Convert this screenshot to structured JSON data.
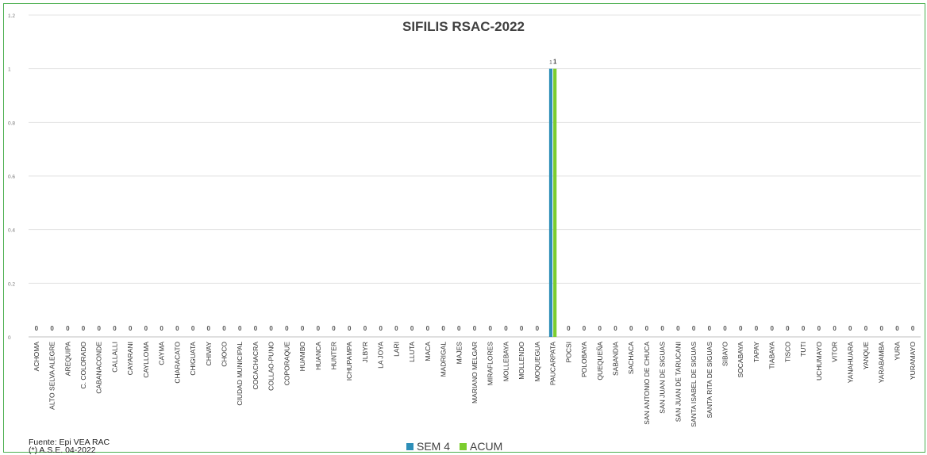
{
  "chart_data": {
    "type": "bar",
    "title": "SIFILIS RSAC-2022",
    "xlabel": "",
    "ylabel": "",
    "ylim": [
      0,
      1.2
    ],
    "yticks": [
      "0",
      "0.2",
      "0.4",
      "0.6",
      "0.8",
      "1",
      "1.2"
    ],
    "grid": true,
    "legend_position": "bottom",
    "categories": [
      "ACHOMA",
      "ALTO SELVA ALEGRE",
      "AREQUIPA",
      "C. COLORADO",
      "CABANACONDE",
      "CALLALLI",
      "CAYARANI",
      "CAYLLOMA",
      "CAYMA",
      "CHARACATO",
      "CHIGUATA",
      "CHIVAY",
      "CHOCO",
      "CIUDAD MUNICIPAL",
      "COCACHACRA",
      "COLLAO-PUNO",
      "COPORAQUE",
      "HUAMBO",
      "HUANCA",
      "HUNTER",
      "ICHUPAMPA",
      "JLBYR",
      "LA JOYA",
      "LARI",
      "LLUTA",
      "MACA",
      "MADRIGAL",
      "MAJES",
      "MARIANO MELGAR",
      "MIRAFLORES",
      "MOLLEBAYA",
      "MOLLENDO",
      "MOQUEGUA",
      "PAUCARPATA",
      "POCSI",
      "POLOBAYA",
      "QUEQUEÑA",
      "SABANDIA",
      "SACHACA",
      "SAN ANTONIO DE CHUCA",
      "SAN JUAN DE SIGUAS",
      "SAN JUAN DE TARUCANI",
      "SANTA ISABEL DE SIGUAS",
      "SANTA RITA DE SIGUAS",
      "SIBAYO",
      "SOCABAYA",
      "TAPAY",
      "TIABAYA",
      "TISCO",
      "TUTI",
      "UCHUMAYO",
      "VITOR",
      "YANAHUARA",
      "YANQUE",
      "YARABAMBA",
      "YURA",
      "YURAMAYO"
    ],
    "series": [
      {
        "name": "SEM 4",
        "color": "#2e8fb8",
        "values": [
          0,
          0,
          0,
          0,
          0,
          0,
          0,
          0,
          0,
          0,
          0,
          0,
          0,
          0,
          0,
          0,
          0,
          0,
          0,
          0,
          0,
          0,
          0,
          0,
          0,
          0,
          0,
          0,
          0,
          0,
          0,
          0,
          0,
          1,
          0,
          0,
          0,
          0,
          0,
          0,
          0,
          0,
          0,
          0,
          0,
          0,
          0,
          0,
          0,
          0,
          0,
          0,
          0,
          0,
          0,
          0,
          0
        ]
      },
      {
        "name": "ACUM",
        "color": "#7ccd2e",
        "values": [
          0,
          0,
          0,
          0,
          0,
          0,
          0,
          0,
          0,
          0,
          0,
          0,
          0,
          0,
          0,
          0,
          0,
          0,
          0,
          0,
          0,
          0,
          0,
          0,
          0,
          0,
          0,
          0,
          0,
          0,
          0,
          0,
          0,
          1,
          0,
          0,
          0,
          0,
          0,
          0,
          0,
          0,
          0,
          0,
          0,
          0,
          0,
          0,
          0,
          0,
          0,
          0,
          0,
          0,
          0,
          0,
          0
        ]
      }
    ],
    "data_labels_shown": true
  },
  "footer": {
    "source_line1": "Fuente:  Epi VEA RAC",
    "source_line2": "(*) A.S.E. 04-2022"
  }
}
